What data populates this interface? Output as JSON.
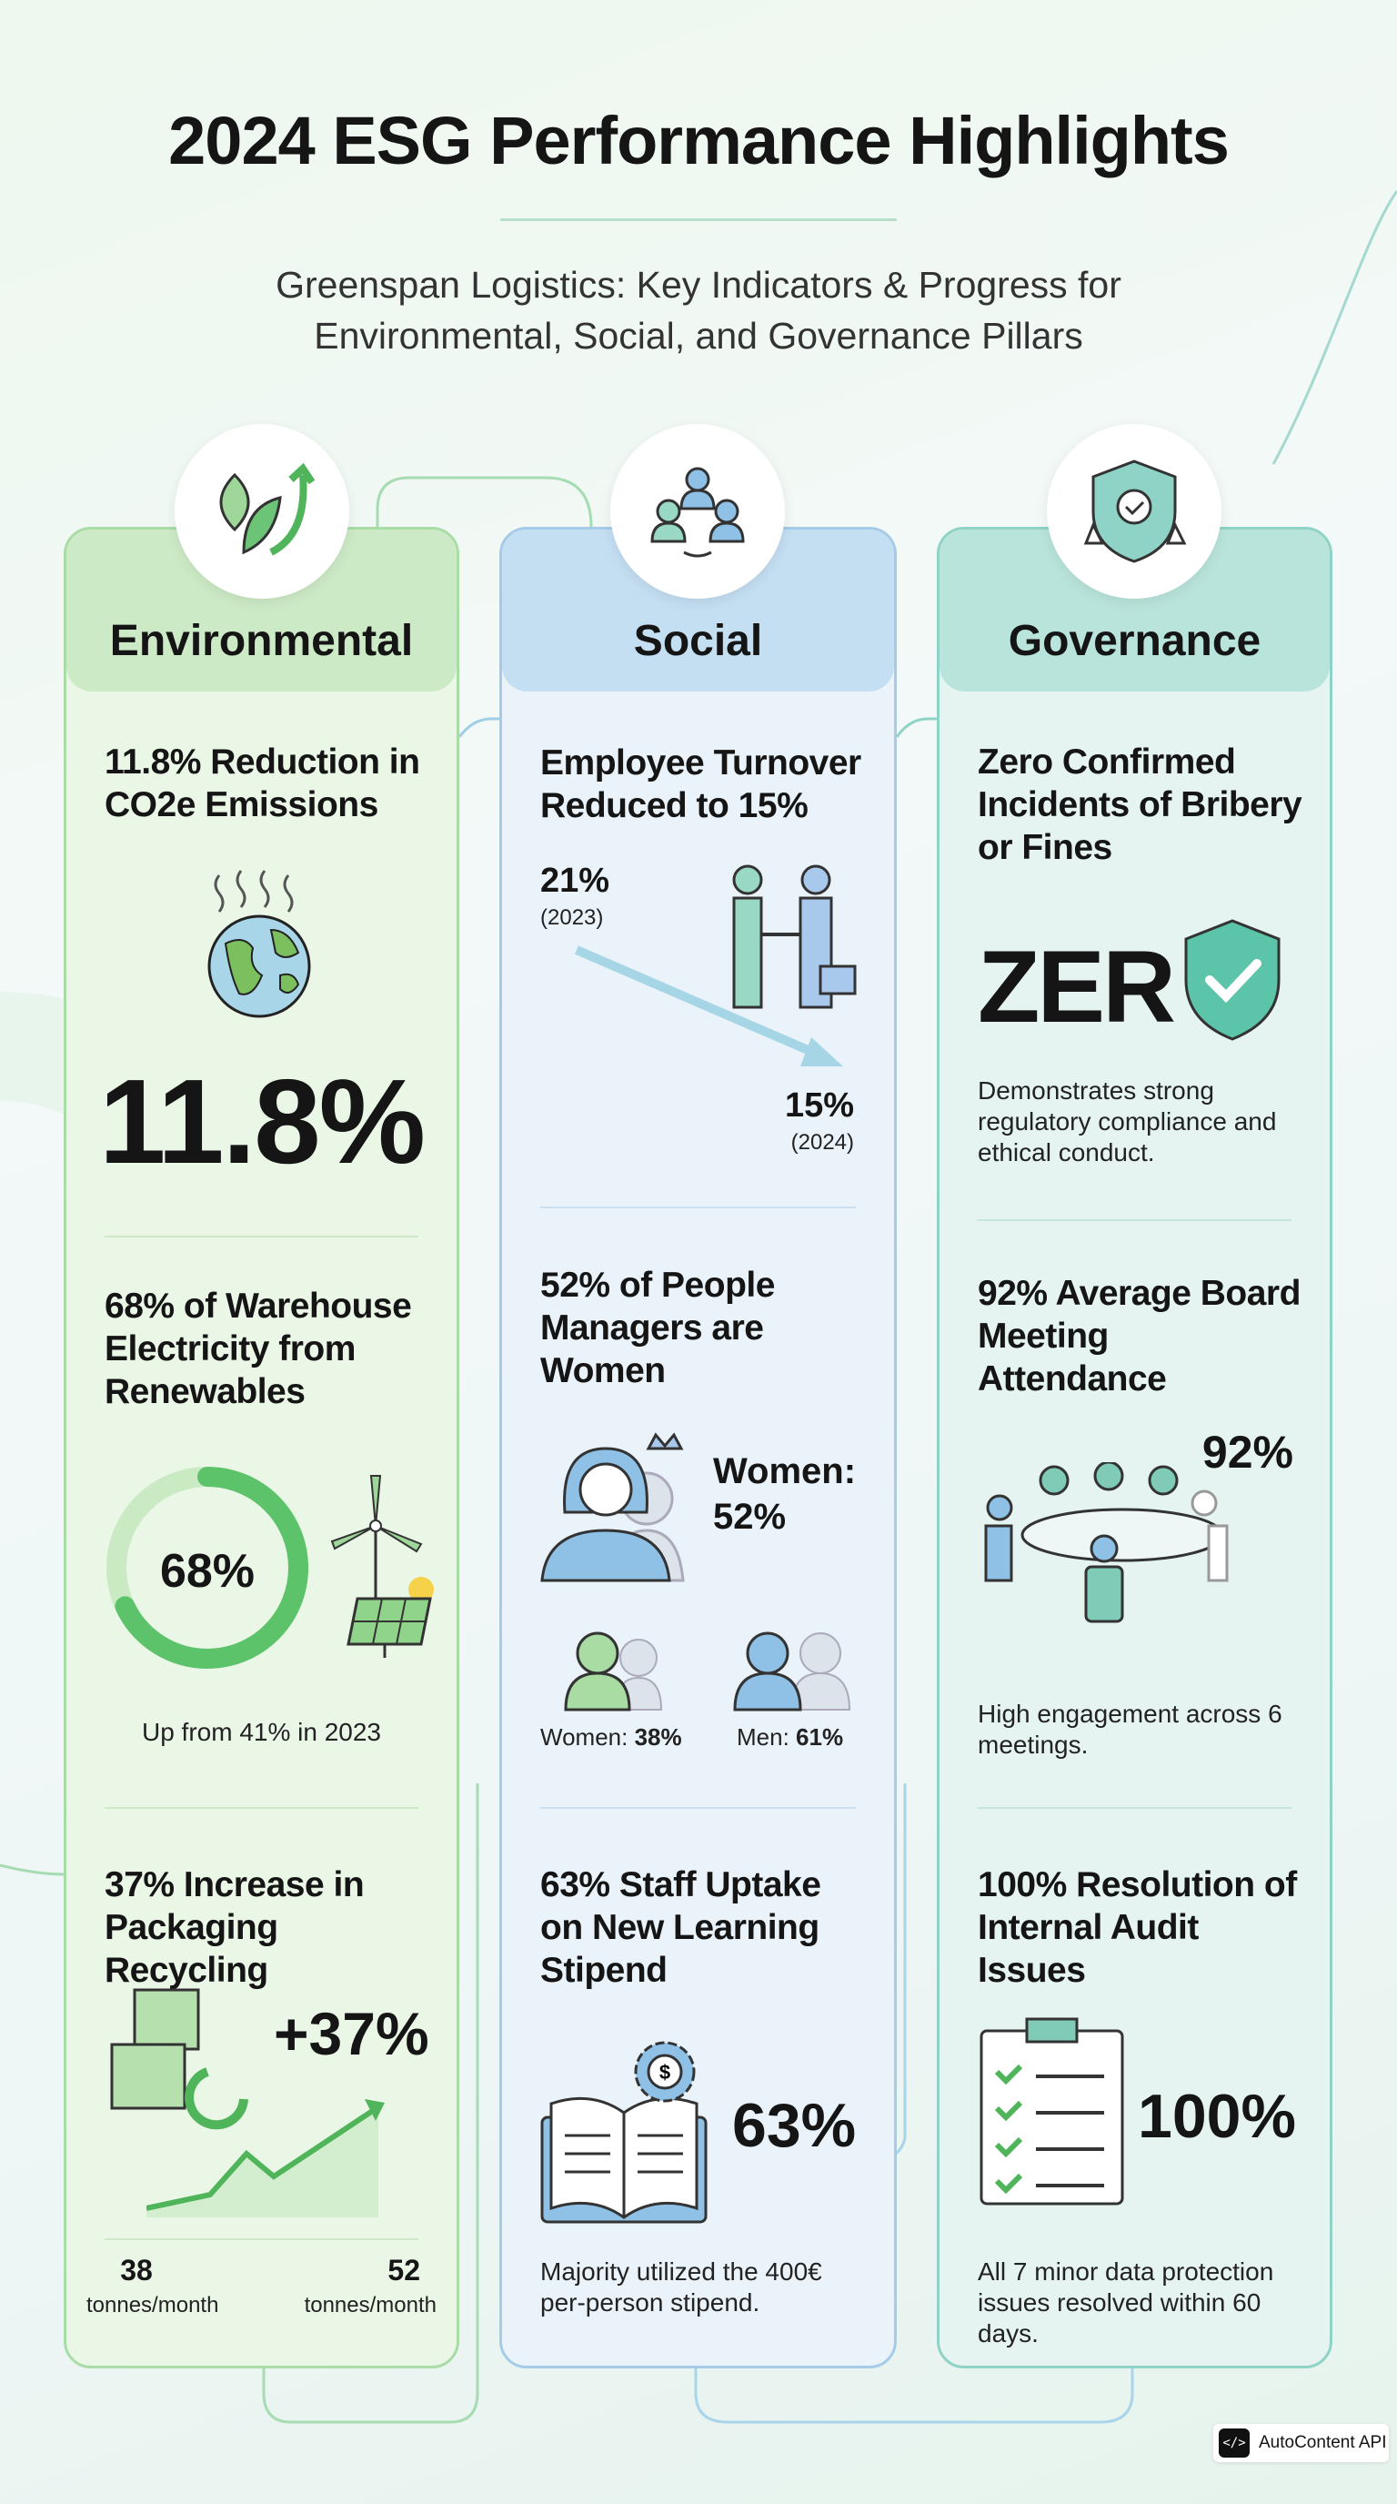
{
  "header": {
    "title": "2024 ESG Performance Highlights",
    "subtitle_line1": "Greenspan Logistics: Key Indicators & Progress for",
    "subtitle_line2": "Environmental, Social, and Governance Pillars"
  },
  "colors": {
    "environmental": "#5cc36a",
    "social": "#6aaee0",
    "governance": "#4fb8a4"
  },
  "environmental": {
    "label": "Environmental",
    "kpi1": {
      "title": "11.8% Reduction in CO2e Emissions",
      "value": "11.8%"
    },
    "kpi2": {
      "title": "68% of Warehouse Electricity from Renewables",
      "value": "68%",
      "progress": 0.68,
      "note": "Up from 41% in 2023"
    },
    "kpi3": {
      "title": "37% Increase in Packaging Recycling",
      "value": "+37%",
      "start_value": "38",
      "start_unit": "tonnes/month",
      "end_value": "52",
      "end_unit": "tonnes/month"
    }
  },
  "social": {
    "label": "Social",
    "kpi1": {
      "title": "Employee Turnover Reduced to 15%",
      "from_value": "21%",
      "from_year": "(2023)",
      "to_value": "15%",
      "to_year": "(2024)"
    },
    "kpi2": {
      "title": "52% of People Managers are Women",
      "women_label": "Women:",
      "women_value": "52%",
      "women_overall_label": "Women:",
      "women_overall_value": "38%",
      "men_overall_label": "Men:",
      "men_overall_value": "61%"
    },
    "kpi3": {
      "title": "63% Staff Uptake on New Learning Stipend",
      "value": "63%",
      "note": "Majority utilized the 400€ per-person stipend."
    }
  },
  "governance": {
    "label": "Governance",
    "kpi1": {
      "title": "Zero Confirmed Incidents of Bribery or Fines",
      "value": "ZER",
      "note": "Demonstrates strong regulatory compliance and ethical conduct."
    },
    "kpi2": {
      "title": "92% Average Board Meeting Attendance",
      "value": "92%",
      "note": "High engagement across 6 meetings."
    },
    "kpi3": {
      "title": "100% Resolution of Internal Audit Issues",
      "value": "100%",
      "note": "All 7 minor data protection issues resolved within 60 days."
    }
  },
  "badge": {
    "icon": "code-icon",
    "label": "AutoContent API",
    "glyph": "</>"
  }
}
